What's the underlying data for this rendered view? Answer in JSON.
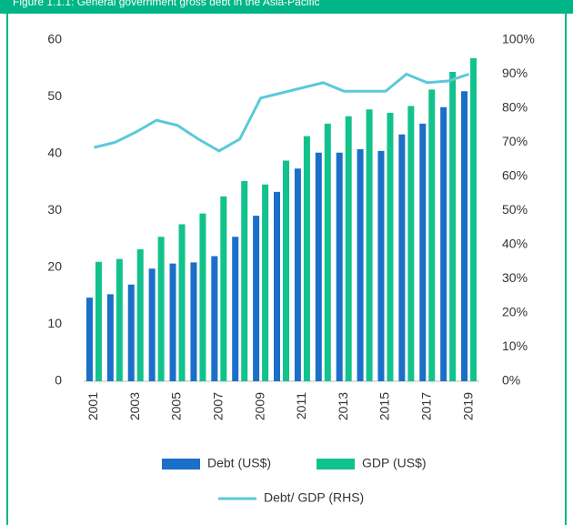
{
  "chart_data": {
    "type": "bar_line",
    "title": "Figure 1.1.1: General government gross debt in the Asia-Pacific",
    "categories": [
      "2001",
      null,
      "2003",
      null,
      "2005",
      null,
      "2007",
      null,
      "2009",
      null,
      "2011",
      null,
      "2013",
      null,
      "2015",
      null,
      "2017",
      null,
      "2019"
    ],
    "series": [
      {
        "name": "Debt (US$)",
        "color": "#1b6fc8",
        "values": [
          14.7,
          15.3,
          17,
          19.8,
          20.7,
          20.9,
          22,
          25.4,
          29.1,
          33.3,
          37.4,
          40.2,
          40.2,
          40.8,
          40.5,
          43.4,
          45.3,
          48.2,
          51
        ]
      },
      {
        "name": "GDP (US$)",
        "color": "#12c28c",
        "values": [
          21,
          21.5,
          23.2,
          25.4,
          27.6,
          29.5,
          32.5,
          35.2,
          34.6,
          38.8,
          43.1,
          45.3,
          46.6,
          47.8,
          47.2,
          48.4,
          51.3,
          54.4,
          56.8
        ]
      },
      {
        "name": "Debt/ GDP (RHS)",
        "color": "#5bc8dc",
        "axis": "y2",
        "values": [
          68.5,
          70,
          73,
          76.5,
          75,
          71,
          67.5,
          71,
          83,
          84.5,
          86,
          87.5,
          85,
          85,
          85,
          90,
          87.5,
          88,
          90
        ]
      }
    ],
    "ylim": [
      0,
      60
    ],
    "yticks": [
      0,
      10,
      20,
      30,
      40,
      50,
      60
    ],
    "y2lim": [
      0,
      100
    ],
    "y2ticks": [
      {
        "value": 0,
        "label": "0%"
      },
      {
        "value": 10,
        "label": "10%"
      },
      {
        "value": 20,
        "label": "20%"
      },
      {
        "value": 30,
        "label": "30%"
      },
      {
        "value": 40,
        "label": "40%"
      },
      {
        "value": 50,
        "label": "50%"
      },
      {
        "value": 60,
        "label": "60%"
      },
      {
        "value": 70,
        "label": "70%"
      },
      {
        "value": 80,
        "label": "80%"
      },
      {
        "value": 90,
        "label": "90%"
      },
      {
        "value": 100,
        "label": "100%"
      }
    ],
    "grid": false
  }
}
